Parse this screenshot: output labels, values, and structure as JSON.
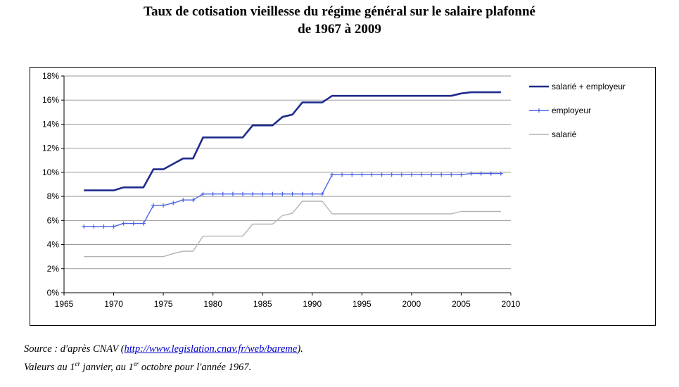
{
  "chart_data": {
    "type": "line",
    "title": "Taux de cotisation vieillesse du régime général sur le salaire plafonné",
    "subtitle": "de 1967 à 2009",
    "xlim": [
      1965,
      2010
    ],
    "ylim": [
      0,
      18
    ],
    "x_ticks": [
      "1965",
      "1970",
      "1975",
      "1980",
      "1985",
      "1990",
      "1995",
      "2000",
      "2005",
      "2010"
    ],
    "y_ticks": [
      "0%",
      "2%",
      "4%",
      "6%",
      "8%",
      "10%",
      "12%",
      "14%",
      "16%",
      "18%"
    ],
    "grid": "horizontal",
    "legend_position": "right",
    "x": [
      1967,
      1968,
      1969,
      1970,
      1971,
      1972,
      1973,
      1974,
      1975,
      1976,
      1977,
      1978,
      1979,
      1980,
      1981,
      1982,
      1983,
      1984,
      1985,
      1986,
      1987,
      1988,
      1989,
      1990,
      1991,
      1992,
      1993,
      1994,
      1995,
      1996,
      1997,
      1998,
      1999,
      2000,
      2001,
      2002,
      2003,
      2004,
      2005,
      2006,
      2007,
      2008,
      2009
    ],
    "series": [
      {
        "name": "salarié + employeur",
        "color": "#1f2b8c",
        "style": "thick-line",
        "values": [
          8.5,
          8.5,
          8.5,
          8.5,
          8.75,
          8.75,
          8.75,
          10.25,
          10.25,
          10.7,
          11.15,
          11.15,
          12.9,
          12.9,
          12.9,
          12.9,
          12.9,
          13.9,
          13.9,
          13.9,
          14.6,
          14.8,
          15.8,
          15.8,
          15.8,
          16.35,
          16.35,
          16.35,
          16.35,
          16.35,
          16.35,
          16.35,
          16.35,
          16.35,
          16.35,
          16.35,
          16.35,
          16.35,
          16.55,
          16.65,
          16.65,
          16.65,
          16.65
        ]
      },
      {
        "name": "employeur",
        "color": "#4a63e6",
        "style": "line-markers",
        "values": [
          5.5,
          5.5,
          5.5,
          5.5,
          5.75,
          5.75,
          5.75,
          7.25,
          7.25,
          7.45,
          7.7,
          7.7,
          8.2,
          8.2,
          8.2,
          8.2,
          8.2,
          8.2,
          8.2,
          8.2,
          8.2,
          8.2,
          8.2,
          8.2,
          8.2,
          9.8,
          9.8,
          9.8,
          9.8,
          9.8,
          9.8,
          9.8,
          9.8,
          9.8,
          9.8,
          9.8,
          9.8,
          9.8,
          9.8,
          9.9,
          9.9,
          9.9,
          9.9
        ]
      },
      {
        "name": "salarié",
        "color": "#b3b3b3",
        "style": "thin-line",
        "values": [
          3.0,
          3.0,
          3.0,
          3.0,
          3.0,
          3.0,
          3.0,
          3.0,
          3.0,
          3.25,
          3.45,
          3.45,
          4.7,
          4.7,
          4.7,
          4.7,
          4.7,
          5.7,
          5.7,
          5.7,
          6.4,
          6.6,
          7.6,
          7.6,
          7.6,
          6.55,
          6.55,
          6.55,
          6.55,
          6.55,
          6.55,
          6.55,
          6.55,
          6.55,
          6.55,
          6.55,
          6.55,
          6.55,
          6.75,
          6.75,
          6.75,
          6.75,
          6.75
        ]
      }
    ]
  },
  "source": {
    "prefix": "Source : d'après CNAV (",
    "link": "http://www.legislation.cnav.fr/web/bareme",
    "suffix": ").",
    "line2_a": "Valeurs au 1",
    "line2_sup1": "er",
    "line2_b": " janvier, au 1",
    "line2_sup2": "er",
    "line2_c": " octobre pour l'année 1967."
  }
}
